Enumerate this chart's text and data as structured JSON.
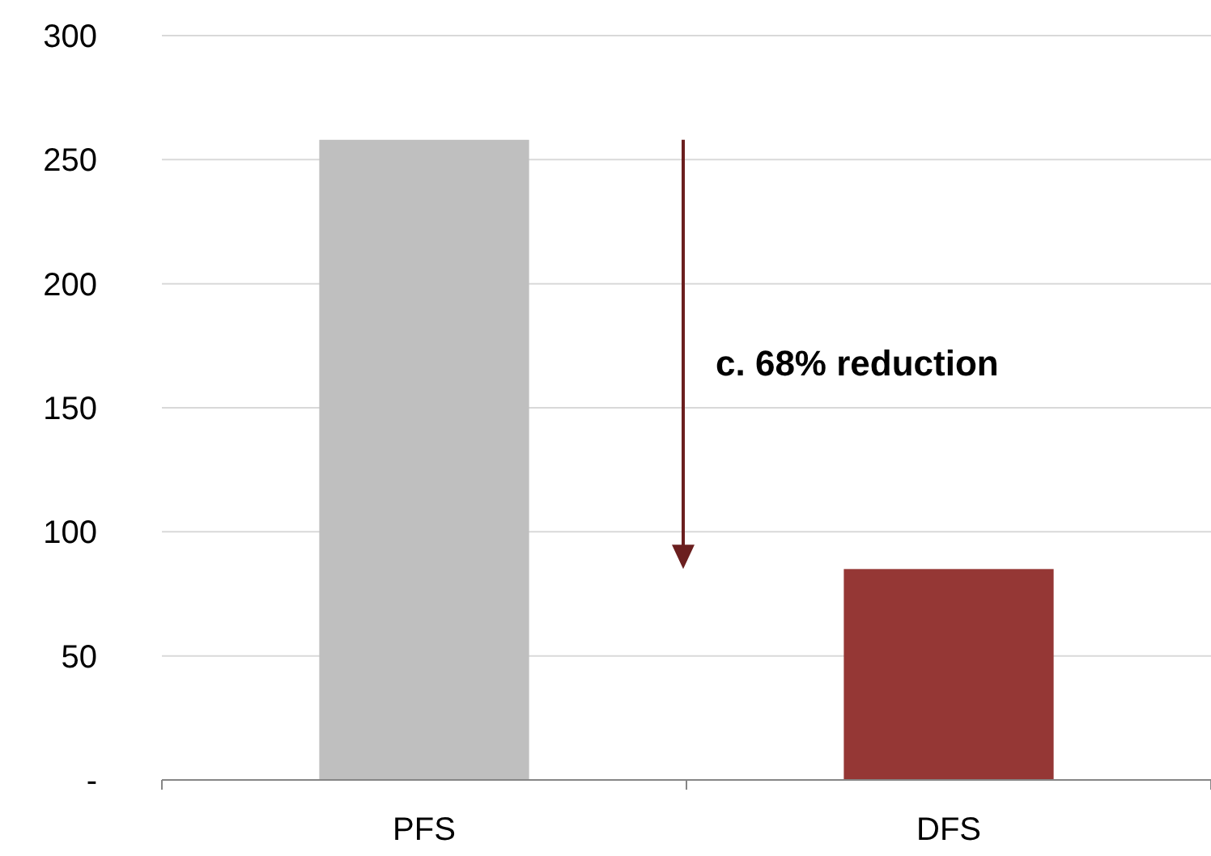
{
  "chart_data": {
    "type": "bar",
    "categories": [
      "PFS",
      "DFS"
    ],
    "values": [
      258,
      85
    ],
    "colors": [
      "#bfbfbf",
      "#953735"
    ],
    "ylim": [
      0,
      300
    ],
    "yticks": [
      {
        "value": 0,
        "label": "-"
      },
      50,
      100,
      150,
      200,
      250,
      300
    ],
    "grid": "y",
    "annotations": [
      "c. 68% reduction"
    ]
  }
}
